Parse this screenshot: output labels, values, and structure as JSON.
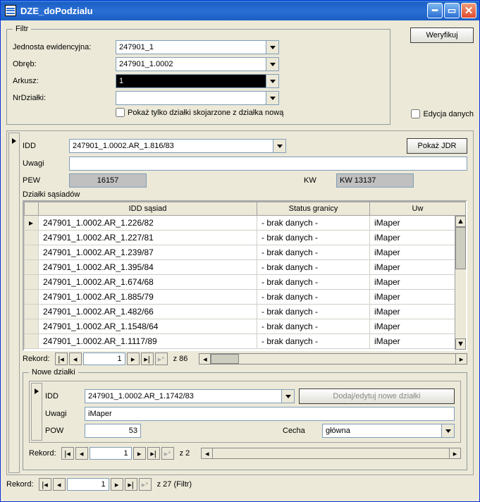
{
  "window": {
    "title": "DZE_doPodzialu"
  },
  "filtr": {
    "legend": "Filtr",
    "jednostka_label": "Jednosta ewidencyjna:",
    "jednostka_value": "247901_1",
    "obreb_label": "Obręb:",
    "obreb_value": "247901_1.0002",
    "arkusz_label": "Arkusz:",
    "arkusz_value": "1",
    "nrdzialki_label": "NrDziałki:",
    "nrdzialki_value": "",
    "pokaz_label": "Pokaż tylko działki skojarzone z działka nową",
    "weryfikuj_btn": "Weryfikuj",
    "edycja_label": "Edycja danych"
  },
  "main": {
    "idd_label": "IDD",
    "idd_value": "247901_1.0002.AR_1.816/83",
    "pokaz_jdr_btn": "Pokaż JDR",
    "uwagi_label": "Uwagi",
    "uwagi_value": "",
    "pew_label": "PEW",
    "pew_value": "16157",
    "kw_label": "KW",
    "kw_value": "KW 13137",
    "sasiedzi_label": "Działki sąsiadów",
    "grid": {
      "col_idd": "IDD sąsiad",
      "col_status": "Status granicy",
      "col_uw": "Uw",
      "rows": [
        {
          "idd": "247901_1.0002.AR_1.226/82",
          "status": "- brak danych -",
          "uw": "iMaper"
        },
        {
          "idd": "247901_1.0002.AR_1.227/81",
          "status": "- brak danych -",
          "uw": "iMaper"
        },
        {
          "idd": "247901_1.0002.AR_1.239/87",
          "status": "- brak danych -",
          "uw": "iMaper"
        },
        {
          "idd": "247901_1.0002.AR_1.395/84",
          "status": "- brak danych -",
          "uw": "iMaper"
        },
        {
          "idd": "247901_1.0002.AR_1.674/68",
          "status": "- brak danych -",
          "uw": "iMaper"
        },
        {
          "idd": "247901_1.0002.AR_1.885/79",
          "status": "- brak danych -",
          "uw": "iMaper"
        },
        {
          "idd": "247901_1.0002.AR_1.482/66",
          "status": "- brak danych -",
          "uw": "iMaper"
        },
        {
          "idd": "247901_1.0002.AR_1.1548/64",
          "status": "- brak danych -",
          "uw": "iMaper"
        },
        {
          "idd": "247901_1.0002.AR_1.1117/89",
          "status": "- brak danych -",
          "uw": "iMaper"
        }
      ]
    },
    "rekord_label": "Rekord:",
    "rekord_pos": "1",
    "rekord_total": "z  86"
  },
  "nowe": {
    "legend": "Nowe działki",
    "idd_label": "IDD",
    "idd_value": "247901_1.0002.AR_1.1742/83",
    "dodaj_btn": "Dodaj/edytuj nowe działki",
    "uwagi_label": "Uwagi",
    "uwagi_value": "iMaper",
    "pow_label": "POW",
    "pow_value": "53",
    "cecha_label": "Cecha",
    "cecha_value": "główna",
    "rekord_label": "Rekord:",
    "rekord_pos": "1",
    "rekord_total": "z  2"
  },
  "footer": {
    "rekord_label": "Rekord:",
    "rekord_pos": "1",
    "rekord_total": "z  27  (Filtr)"
  }
}
